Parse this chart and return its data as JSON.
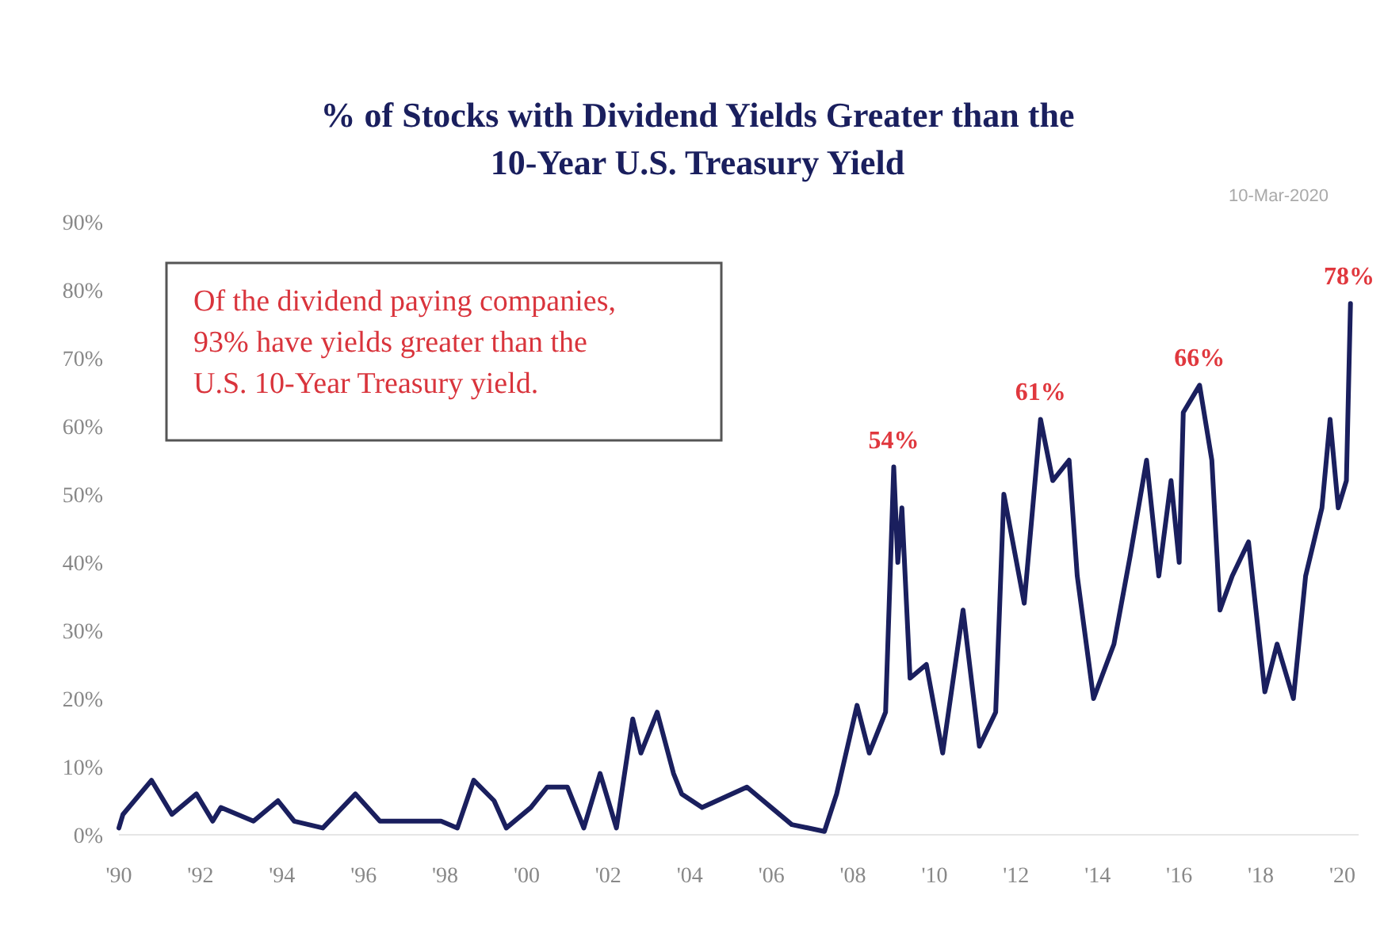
{
  "chart_data": {
    "type": "line",
    "title": "% of Stocks with Dividend Yields Greater than the 10-Year U.S. Treasury Yield",
    "x": [
      1990,
      1990.1,
      1990.8,
      1991.3,
      1991.9,
      1992.3,
      1992.5,
      1993.3,
      1993.9,
      1994.3,
      1995,
      1995.8,
      1996.4,
      1997.1,
      1997.9,
      1998.3,
      1998.7,
      1999.2,
      1999.5,
      2000.1,
      2000.5,
      2001,
      2001.4,
      2001.8,
      2002.2,
      2002.6,
      2002.8,
      2003.2,
      2003.6,
      2003.8,
      2004.3,
      2005.4,
      2006,
      2006.5,
      2007.3,
      2007.6,
      2008.1,
      2008.4,
      2008.8,
      2009,
      2009.1,
      2009.2,
      2009.4,
      2009.8,
      2010.2,
      2010.7,
      2011.1,
      2011.5,
      2011.7,
      2012.2,
      2012.6,
      2012.9,
      2013.3,
      2013.5,
      2013.9,
      2014.4,
      2014.8,
      2015.2,
      2015.5,
      2015.8,
      2016,
      2016.1,
      2016.5,
      2016.8,
      2017,
      2017.3,
      2017.7,
      2018.1,
      2018.4,
      2018.8,
      2019.1,
      2019.5,
      2019.7,
      2019.9,
      2020.1,
      2020.2
    ],
    "series": [
      {
        "color": "#1a1f5e",
        "values": [
          1,
          3,
          8,
          3,
          6,
          2,
          4,
          2,
          5,
          2,
          1,
          6,
          2,
          2,
          2,
          1,
          8,
          5,
          1,
          4,
          7,
          7,
          1,
          9,
          1,
          17,
          12,
          18,
          9,
          6,
          4,
          7,
          4,
          1.5,
          0.5,
          6,
          19,
          12,
          18,
          54,
          40,
          48,
          23,
          25,
          12,
          33,
          13,
          18,
          50,
          34,
          61,
          52,
          55,
          38,
          20,
          28,
          41,
          55,
          38,
          52,
          40,
          62,
          66,
          55,
          33,
          38,
          43,
          21,
          28,
          20,
          38,
          48,
          61,
          48,
          52,
          78
        ]
      }
    ],
    "xlim": [
      1990,
      2020.4
    ],
    "xticks": [
      {
        "value": 1990,
        "label": "'90"
      },
      {
        "value": 1992,
        "label": "'92"
      },
      {
        "value": 1994,
        "label": "'94"
      },
      {
        "value": 1996,
        "label": "'96"
      },
      {
        "value": 1998,
        "label": "'98"
      },
      {
        "value": 2000,
        "label": "'00"
      },
      {
        "value": 2002,
        "label": "'02"
      },
      {
        "value": 2004,
        "label": "'04"
      },
      {
        "value": 2006,
        "label": "'06"
      },
      {
        "value": 2008,
        "label": "'08"
      },
      {
        "value": 2010,
        "label": "'10"
      },
      {
        "value": 2012,
        "label": "'12"
      },
      {
        "value": 2014,
        "label": "'14"
      },
      {
        "value": 2016,
        "label": "'16"
      },
      {
        "value": 2018,
        "label": "'18"
      },
      {
        "value": 2020,
        "label": "'20"
      }
    ],
    "ylim": [
      0,
      90
    ],
    "yticks": [
      {
        "value": 0,
        "label": "0%"
      },
      {
        "value": 10,
        "label": "10%"
      },
      {
        "value": 20,
        "label": "20%"
      },
      {
        "value": 30,
        "label": "30%"
      },
      {
        "value": 40,
        "label": "40%"
      },
      {
        "value": 50,
        "label": "50%"
      },
      {
        "value": 60,
        "label": "60%"
      },
      {
        "value": 70,
        "label": "70%"
      },
      {
        "value": 80,
        "label": "80%"
      },
      {
        "value": 90,
        "label": "90%"
      }
    ],
    "grid": false,
    "annotations": [
      "Of the dividend paying companies, 93% have yields greater than the U.S. 10-Year Treasury yield.",
      "10-Mar-2020",
      {
        "text": "54%",
        "x": 2009,
        "y": 54
      },
      {
        "text": "61%",
        "x": 2012.6,
        "y": 61
      },
      {
        "text": "66%",
        "x": 2016.5,
        "y": 66
      },
      {
        "text": "78%",
        "x": 2020.2,
        "y": 78
      }
    ]
  }
}
